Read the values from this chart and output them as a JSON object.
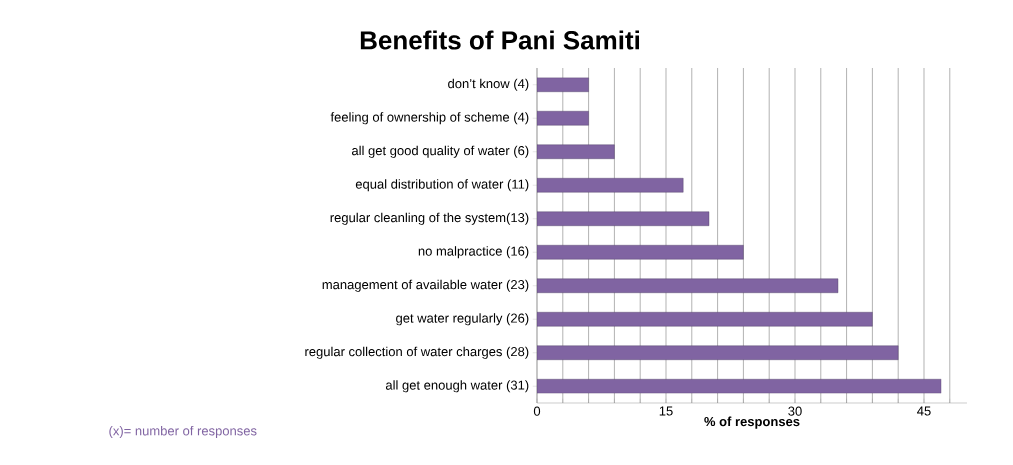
{
  "chart_data": {
    "type": "bar",
    "orientation": "horizontal",
    "title": "Benefits of Pani Samiti",
    "xlabel": "% of responses",
    "categories": [
      "don’t know (4)",
      "feeling of ownership of scheme (4)",
      "all get good quality of water (6)",
      "equal distribution of water (11)",
      "regular cleanling of the system(13)",
      "no malpractice (16)",
      "management of available water (23)",
      "get water regularly (26)",
      "regular collection of water charges (28)",
      "all get enough water (31)"
    ],
    "values": [
      6,
      6,
      9,
      17,
      20,
      24,
      35,
      39,
      42,
      47
    ],
    "color": "#8064a2",
    "xlim": [
      0,
      50
    ],
    "xticks": [
      0,
      {
        "value": 3,
        "label": null
      },
      {
        "value": 6,
        "label": null
      },
      {
        "value": 9,
        "label": null
      },
      {
        "value": 12,
        "label": null
      },
      15,
      {
        "value": 18,
        "label": null
      },
      {
        "value": 21,
        "label": null
      },
      {
        "value": 24,
        "label": null
      },
      {
        "value": 27,
        "label": null
      },
      30,
      {
        "value": 33,
        "label": null
      },
      {
        "value": 36,
        "label": null
      },
      {
        "value": 39,
        "label": null
      },
      {
        "value": 42,
        "label": null
      },
      45,
      {
        "value": 48,
        "label": null
      }
    ],
    "grid": "x",
    "annotations": [
      "(x)= number of responses"
    ]
  }
}
